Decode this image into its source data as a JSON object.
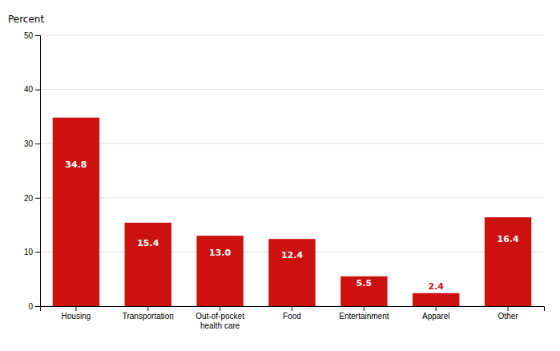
{
  "chart_data": {
    "type": "bar",
    "ylabel": "Percent",
    "categories": [
      "Housing",
      "Transportation",
      "Out-of-pocket\nhealth care",
      "Food",
      "Entertainment",
      "Apparel",
      "Other"
    ],
    "values": [
      34.8,
      15.4,
      13.0,
      12.4,
      5.5,
      2.4,
      16.4
    ],
    "value_labels": [
      "34.8",
      "15.4",
      "13.0",
      "12.4",
      "5.5",
      "2.4",
      "16.4"
    ],
    "color": "#cc1111",
    "ylim": [
      0,
      50
    ],
    "yticks": [
      0,
      10,
      20,
      30,
      40,
      50
    ],
    "grid": true,
    "data_labels": true
  }
}
